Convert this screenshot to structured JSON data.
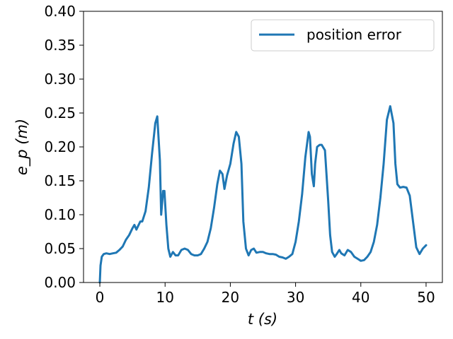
{
  "chart_data": {
    "type": "line",
    "xlabel": "t (s)",
    "ylabel": "e_p (m)",
    "xlim": [
      -2.5,
      52.5
    ],
    "ylim": [
      0.0,
      0.4
    ],
    "xticks": [
      0,
      10,
      20,
      30,
      40,
      50
    ],
    "yticks": [
      0.0,
      0.05,
      0.1,
      0.15,
      0.2,
      0.25,
      0.3,
      0.35,
      0.4
    ],
    "xtick_labels": [
      "0",
      "10",
      "20",
      "30",
      "40",
      "50"
    ],
    "ytick_labels": [
      "0.00",
      "0.05",
      "0.10",
      "0.15",
      "0.20",
      "0.25",
      "0.30",
      "0.35",
      "0.40"
    ],
    "grid": false,
    "legend": {
      "placement": "top-right",
      "entries": [
        "position error"
      ]
    },
    "series": [
      {
        "name": "position error",
        "color": "#1f77b4",
        "x": [
          0,
          0.1,
          0.3,
          0.6,
          1.0,
          1.5,
          2.0,
          2.5,
          3.0,
          3.5,
          4.0,
          4.5,
          5.0,
          5.3,
          5.6,
          5.8,
          6.2,
          6.5,
          7.0,
          7.5,
          8.0,
          8.5,
          8.8,
          9.2,
          9.4,
          9.7,
          9.9,
          10.2,
          10.5,
          10.8,
          11.2,
          11.6,
          12.0,
          12.5,
          13.0,
          13.5,
          14.0,
          14.5,
          15.0,
          15.5,
          16.0,
          16.5,
          17.0,
          17.5,
          18.0,
          18.4,
          18.8,
          19.1,
          19.5,
          20.0,
          20.5,
          20.9,
          21.3,
          21.7,
          22.0,
          22.4,
          22.8,
          23.2,
          23.6,
          24.0,
          24.5,
          25.0,
          25.5,
          26.0,
          26.5,
          27.0,
          27.5,
          28.0,
          28.5,
          29.0,
          29.5,
          30.0,
          30.5,
          31.0,
          31.5,
          32.0,
          32.2,
          32.5,
          32.8,
          33.0,
          33.3,
          33.7,
          34.0,
          34.5,
          35.0,
          35.3,
          35.6,
          36.0,
          36.3,
          36.7,
          37.0,
          37.5,
          38.0,
          38.5,
          39.0,
          39.5,
          40.0,
          40.5,
          41.0,
          41.5,
          42.0,
          42.5,
          43.0,
          43.5,
          44.0,
          44.5,
          45.0,
          45.3,
          45.6,
          46.0,
          46.5,
          47.0,
          47.5,
          48.0,
          48.5,
          49.0,
          49.5,
          50.0
        ],
        "y": [
          0.0,
          0.025,
          0.038,
          0.042,
          0.043,
          0.042,
          0.043,
          0.044,
          0.048,
          0.053,
          0.063,
          0.07,
          0.08,
          0.085,
          0.078,
          0.082,
          0.09,
          0.09,
          0.105,
          0.14,
          0.19,
          0.235,
          0.245,
          0.18,
          0.1,
          0.135,
          0.135,
          0.085,
          0.05,
          0.038,
          0.045,
          0.04,
          0.04,
          0.048,
          0.05,
          0.048,
          0.042,
          0.04,
          0.04,
          0.042,
          0.05,
          0.06,
          0.08,
          0.11,
          0.145,
          0.165,
          0.16,
          0.138,
          0.158,
          0.175,
          0.205,
          0.222,
          0.215,
          0.175,
          0.09,
          0.05,
          0.04,
          0.048,
          0.05,
          0.044,
          0.045,
          0.045,
          0.043,
          0.042,
          0.042,
          0.041,
          0.038,
          0.037,
          0.035,
          0.038,
          0.042,
          0.06,
          0.09,
          0.13,
          0.185,
          0.222,
          0.215,
          0.16,
          0.142,
          0.175,
          0.2,
          0.203,
          0.203,
          0.195,
          0.12,
          0.07,
          0.045,
          0.038,
          0.042,
          0.048,
          0.043,
          0.04,
          0.048,
          0.045,
          0.038,
          0.035,
          0.032,
          0.033,
          0.038,
          0.045,
          0.06,
          0.085,
          0.125,
          0.175,
          0.24,
          0.26,
          0.235,
          0.175,
          0.145,
          0.14,
          0.141,
          0.14,
          0.128,
          0.09,
          0.052,
          0.042,
          0.05,
          0.055
        ]
      }
    ]
  }
}
